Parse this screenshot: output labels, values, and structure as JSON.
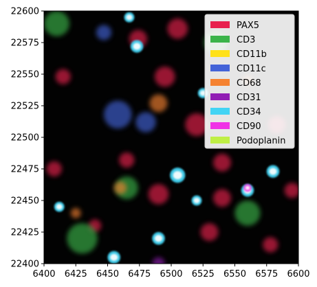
{
  "chart_data": {
    "type": "heatmap",
    "title": "",
    "xlabel": "",
    "ylabel": "",
    "xlim": [
      6400,
      6600
    ],
    "ylim": [
      22400,
      22600
    ],
    "x_ticks": [
      "6400",
      "6425",
      "6450",
      "6475",
      "6500",
      "6525",
      "6550",
      "6575",
      "6600"
    ],
    "y_ticks": [
      "22400",
      "22425",
      "22450",
      "22475",
      "22500",
      "22525",
      "22550",
      "22575",
      "22600"
    ],
    "legend_placement": "upper right",
    "channels": [
      {
        "name": "PAX5",
        "color": "#e8204e"
      },
      {
        "name": "CD3",
        "color": "#3bb44a"
      },
      {
        "name": "CD11b",
        "color": "#ffe119"
      },
      {
        "name": "CD11c",
        "color": "#4363d8"
      },
      {
        "name": "CD68",
        "color": "#f58231"
      },
      {
        "name": "CD31",
        "color": "#911eb4"
      },
      {
        "name": "CD34",
        "color": "#42d4f4"
      },
      {
        "name": "CD90",
        "color": "#f032e6"
      },
      {
        "name": "Podoplanin",
        "color": "#bfef45"
      }
    ],
    "blobs": [
      {
        "channel": "PAX5",
        "x": 6505,
        "y": 22586,
        "r": 8
      },
      {
        "channel": "PAX5",
        "x": 6474,
        "y": 22578,
        "r": 7
      },
      {
        "channel": "PAX5",
        "x": 6415,
        "y": 22548,
        "r": 6
      },
      {
        "channel": "PAX5",
        "x": 6495,
        "y": 22548,
        "r": 8
      },
      {
        "channel": "PAX5",
        "x": 6520,
        "y": 22510,
        "r": 9
      },
      {
        "channel": "PAX5",
        "x": 6583,
        "y": 22510,
        "r": 7
      },
      {
        "channel": "PAX5",
        "x": 6408,
        "y": 22475,
        "r": 6
      },
      {
        "channel": "PAX5",
        "x": 6465,
        "y": 22482,
        "r": 6
      },
      {
        "channel": "PAX5",
        "x": 6540,
        "y": 22480,
        "r": 7
      },
      {
        "channel": "PAX5",
        "x": 6490,
        "y": 22455,
        "r": 8
      },
      {
        "channel": "PAX5",
        "x": 6540,
        "y": 22452,
        "r": 7
      },
      {
        "channel": "PAX5",
        "x": 6595,
        "y": 22458,
        "r": 6
      },
      {
        "channel": "PAX5",
        "x": 6530,
        "y": 22425,
        "r": 7
      },
      {
        "channel": "PAX5",
        "x": 6578,
        "y": 22415,
        "r": 6
      },
      {
        "channel": "PAX5",
        "x": 6440,
        "y": 22430,
        "r": 5
      },
      {
        "channel": "CD3",
        "x": 6410,
        "y": 22590,
        "r": 10
      },
      {
        "channel": "CD3",
        "x": 6430,
        "y": 22420,
        "r": 12
      },
      {
        "channel": "CD3",
        "x": 6560,
        "y": 22440,
        "r": 10
      },
      {
        "channel": "CD3",
        "x": 6535,
        "y": 22575,
        "r": 9
      },
      {
        "channel": "CD3",
        "x": 6465,
        "y": 22460,
        "r": 9
      },
      {
        "channel": "CD11c",
        "x": 6458,
        "y": 22518,
        "r": 11
      },
      {
        "channel": "CD11c",
        "x": 6480,
        "y": 22512,
        "r": 8
      },
      {
        "channel": "CD11c",
        "x": 6447,
        "y": 22583,
        "r": 6
      },
      {
        "channel": "CD68",
        "x": 6490,
        "y": 22527,
        "r": 7
      },
      {
        "channel": "CD68",
        "x": 6460,
        "y": 22460,
        "r": 5
      },
      {
        "channel": "CD68",
        "x": 6560,
        "y": 22545,
        "r": 4
      },
      {
        "channel": "CD68",
        "x": 6425,
        "y": 22440,
        "r": 4
      },
      {
        "channel": "CD31",
        "x": 6490,
        "y": 22400,
        "r": 5
      },
      {
        "channel": "CD34",
        "x": 6473,
        "y": 22572,
        "r": 5
      },
      {
        "channel": "CD34",
        "x": 6525,
        "y": 22535,
        "r": 4
      },
      {
        "channel": "CD34",
        "x": 6505,
        "y": 22470,
        "r": 6
      },
      {
        "channel": "CD34",
        "x": 6580,
        "y": 22473,
        "r": 5
      },
      {
        "channel": "CD34",
        "x": 6520,
        "y": 22450,
        "r": 4
      },
      {
        "channel": "CD34",
        "x": 6560,
        "y": 22458,
        "r": 5
      },
      {
        "channel": "CD34",
        "x": 6490,
        "y": 22420,
        "r": 5
      },
      {
        "channel": "CD34",
        "x": 6455,
        "y": 22405,
        "r": 5
      },
      {
        "channel": "CD34",
        "x": 6412,
        "y": 22445,
        "r": 4
      },
      {
        "channel": "CD34",
        "x": 6467,
        "y": 22595,
        "r": 4
      },
      {
        "channel": "CD90",
        "x": 6560,
        "y": 22460,
        "r": 3
      }
    ]
  }
}
